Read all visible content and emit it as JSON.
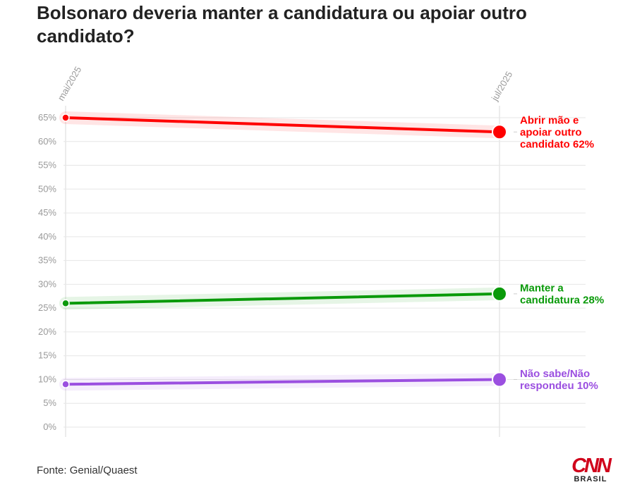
{
  "header": {
    "title": "Bolsonaro deveria manter a candidatura ou apoiar outro candidato?"
  },
  "footer": {
    "source": "Fonte: Genial/Quaest",
    "logo_text": "CNN",
    "logo_subtext": "BRASIL"
  },
  "chart_data": {
    "type": "line",
    "title": "Bolsonaro deveria manter a candidatura ou apoiar outro candidato?",
    "x": [
      "mai/2025",
      "jul/2025"
    ],
    "y_ticks": [
      "0%",
      "5%",
      "10%",
      "15%",
      "20%",
      "25%",
      "30%",
      "35%",
      "40%",
      "45%",
      "50%",
      "55%",
      "60%",
      "65%"
    ],
    "ylim": [
      0,
      65
    ],
    "grid": true,
    "series": [
      {
        "label_lines": [
          "Abrir mão e",
          "apoiar outro",
          "candidato 62%"
        ],
        "values": [
          65,
          62
        ],
        "color": "#ff0000"
      },
      {
        "label_lines": [
          "Manter a",
          "candidatura 28%"
        ],
        "values": [
          26,
          28
        ],
        "color": "#0a9a0a"
      },
      {
        "label_lines": [
          "Não sabe/Não",
          "respondeu 10%"
        ],
        "values": [
          9,
          10
        ],
        "color": "#9b4fe0"
      }
    ]
  }
}
